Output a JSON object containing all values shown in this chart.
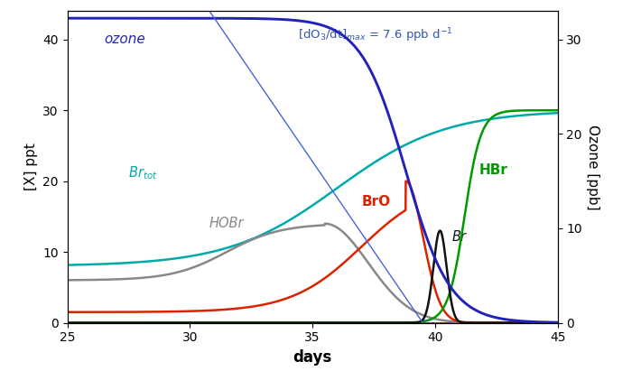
{
  "xlim": [
    25,
    45
  ],
  "ylim_left": [
    0,
    44
  ],
  "ylim_right": [
    0,
    33
  ],
  "xlabel": "days",
  "ylabel_left": "[X] ppt",
  "ylabel_right": "Ozone [ppb]",
  "ozone_color": "#2222bb",
  "brtot_color": "#00aaaa",
  "hobr_color": "#888888",
  "bro_color": "#dd2200",
  "hbr_color": "#009900",
  "br_color": "#111111",
  "tangent_color": "#4466dd",
  "xticks": [
    25,
    30,
    35,
    40,
    45
  ],
  "yticks_left": [
    0,
    10,
    20,
    30,
    40
  ],
  "yticks_right": [
    0,
    10,
    20,
    30
  ],
  "label_fontsize": 11,
  "tick_fontsize": 10,
  "curve_lw": 1.8,
  "tangent_lw": 1.0,
  "annotation_text": "$[\\mathrm{dO_3/dt}]_{max}$ = 7.6 ppb d$^{-1}$",
  "annotation_color": "#3355bb",
  "baseline_color": "#6600aa"
}
